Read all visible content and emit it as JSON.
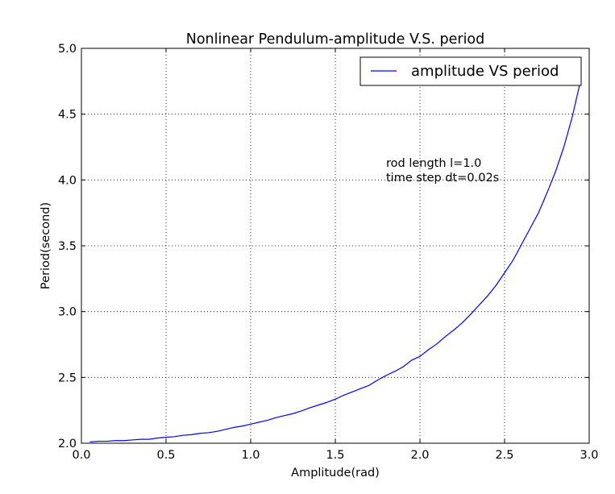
{
  "chart_data": {
    "type": "line",
    "title": "Nonlinear Pendulum-amplitude V.S. period",
    "xlabel": "Amplitude(rad)",
    "ylabel": "Period(second)",
    "xlim": [
      0.0,
      3.0
    ],
    "ylim": [
      2.0,
      5.0
    ],
    "x_ticks": [
      "0.0",
      "0.5",
      "1.0",
      "1.5",
      "2.0",
      "2.5",
      "3.0"
    ],
    "y_ticks": [
      "2.0",
      "2.5",
      "3.0",
      "3.5",
      "4.0",
      "4.5",
      "5.0"
    ],
    "grid": true,
    "legend_position": "top-right",
    "annotations": [
      "rod length l=1.0",
      "time step dt=0.02s"
    ],
    "colors": {
      "line": "#0000ff",
      "frame": "#000000",
      "grid": "#000000"
    },
    "series": [
      {
        "name": "amplitude VS period",
        "x": [
          0.05,
          0.1,
          0.15,
          0.2,
          0.25,
          0.3,
          0.35,
          0.4,
          0.45,
          0.5,
          0.55,
          0.6,
          0.65,
          0.7,
          0.75,
          0.8,
          0.85,
          0.9,
          0.95,
          1.0,
          1.05,
          1.1,
          1.15,
          1.2,
          1.25,
          1.3,
          1.35,
          1.4,
          1.45,
          1.5,
          1.55,
          1.6,
          1.65,
          1.7,
          1.75,
          1.8,
          1.85,
          1.9,
          1.95,
          2.0,
          2.05,
          2.1,
          2.15,
          2.2,
          2.25,
          2.3,
          2.35,
          2.4,
          2.45,
          2.5,
          2.55,
          2.6,
          2.65,
          2.7,
          2.75,
          2.8,
          2.85,
          2.9,
          2.95
        ],
        "y": [
          2.01,
          2.015,
          2.015,
          2.02,
          2.02,
          2.025,
          2.03,
          2.03,
          2.04,
          2.045,
          2.05,
          2.06,
          2.065,
          2.075,
          2.08,
          2.09,
          2.105,
          2.12,
          2.13,
          2.145,
          2.16,
          2.175,
          2.195,
          2.21,
          2.225,
          2.245,
          2.27,
          2.29,
          2.31,
          2.335,
          2.365,
          2.39,
          2.415,
          2.44,
          2.48,
          2.515,
          2.545,
          2.58,
          2.63,
          2.66,
          2.71,
          2.755,
          2.81,
          2.86,
          2.915,
          2.98,
          3.05,
          3.12,
          3.2,
          3.295,
          3.39,
          3.51,
          3.63,
          3.75,
          3.9,
          4.06,
          4.25,
          4.48,
          4.76
        ]
      }
    ]
  }
}
